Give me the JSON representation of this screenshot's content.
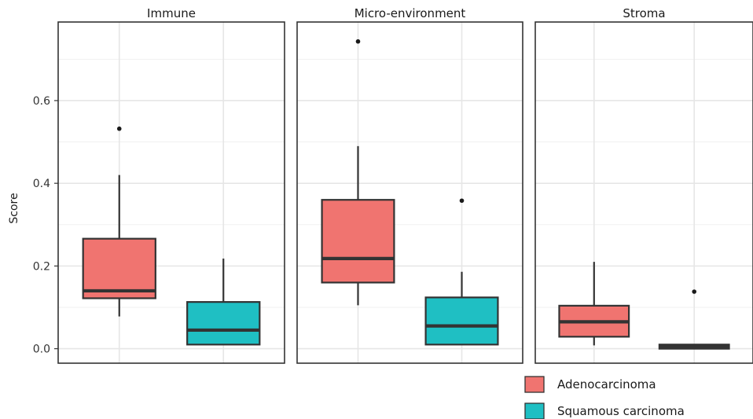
{
  "chart_data": {
    "type": "box",
    "ylabel": "Score",
    "xlabel": "",
    "ylim": [
      -0.035,
      0.79
    ],
    "yticks": [
      0.0,
      0.2,
      0.4,
      0.6
    ],
    "ytick_labels": [
      "0.0",
      "0.2",
      "0.4",
      "0.6"
    ],
    "grid": true,
    "legend_position": "bottom-right",
    "colors": {
      "Adenocarcinoma": "#F07470",
      "Squamous carcinoma": "#1FBFC3"
    },
    "series": [
      {
        "name": "Adenocarcinoma"
      },
      {
        "name": "Squamous carcinoma"
      }
    ],
    "panels": [
      {
        "title": "Immune",
        "boxes": [
          {
            "series": "Adenocarcinoma",
            "whisker_low": 0.078,
            "q1": 0.122,
            "median": 0.14,
            "q3": 0.266,
            "whisker_high": 0.42,
            "outliers": [
              0.532
            ]
          },
          {
            "series": "Squamous carcinoma",
            "whisker_low": 0.01,
            "q1": 0.01,
            "median": 0.045,
            "q3": 0.113,
            "whisker_high": 0.218,
            "outliers": []
          }
        ]
      },
      {
        "title": "Micro-environment",
        "boxes": [
          {
            "series": "Adenocarcinoma",
            "whisker_low": 0.105,
            "q1": 0.16,
            "median": 0.218,
            "q3": 0.36,
            "whisker_high": 0.49,
            "outliers": [
              0.743
            ]
          },
          {
            "series": "Squamous carcinoma",
            "whisker_low": 0.01,
            "q1": 0.01,
            "median": 0.055,
            "q3": 0.124,
            "whisker_high": 0.186,
            "outliers": [
              0.358
            ]
          }
        ]
      },
      {
        "title": "Stroma",
        "boxes": [
          {
            "series": "Adenocarcinoma",
            "whisker_low": 0.008,
            "q1": 0.029,
            "median": 0.065,
            "q3": 0.104,
            "whisker_high": 0.21,
            "outliers": []
          },
          {
            "series": "Squamous carcinoma",
            "whisker_low": 0.0,
            "q1": 0.0,
            "median": 0.005,
            "q3": 0.01,
            "whisker_high": 0.01,
            "outliers": [
              0.138
            ]
          }
        ]
      }
    ]
  }
}
